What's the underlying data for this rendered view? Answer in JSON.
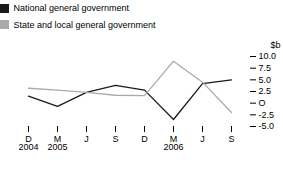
{
  "chart_data": {
    "type": "line",
    "categories": [
      "D",
      "M",
      "J",
      "S",
      "D",
      "M",
      "J",
      "S"
    ],
    "series": [
      {
        "name": "National general government",
        "color": "#1a1a1a",
        "values": [
          1.5,
          -0.7,
          2.3,
          3.8,
          2.8,
          -3.5,
          4.2,
          5.0
        ]
      },
      {
        "name": "State and local general government",
        "color": "#aaaaaa",
        "values": [
          3.2,
          2.8,
          2.3,
          1.7,
          1.6,
          9.0,
          4.5,
          -2.0
        ]
      }
    ],
    "y_label": "$b",
    "ylim": [
      -5.0,
      10.0
    ],
    "yticks": [
      {
        "value": -5.0,
        "label": "-5.0"
      },
      2.5,
      {
        "value": 0,
        "label": "O"
      },
      {
        "value": 5.0,
        "label": "5.0"
      },
      7.5,
      {
        "value": 10.0,
        "label": "10.0"
      },
      {
        "value": -2.5,
        "label": "-2.5"
      }
    ],
    "annotations": [
      {
        "text": "2004",
        "x": 0
      },
      {
        "text": "2005",
        "x": 1
      },
      {
        "text": "2006",
        "x": 5
      }
    ],
    "legend": "upper left",
    "grid": false
  }
}
